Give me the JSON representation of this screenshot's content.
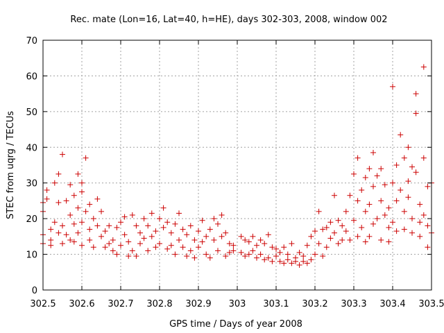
{
  "chart_data": {
    "type": "scatter",
    "title": "Rec. mate (Lon=16, Lat=40, h=HE), days 302-303, 2008, window 002",
    "xlabel": "GPS time / Days of year 2008",
    "ylabel": "STEC from uqrg / TECUs",
    "xlim": [
      302.5,
      303.5
    ],
    "ylim": [
      0,
      70
    ],
    "x_ticks": [
      "302.5",
      "302.6",
      "302.7",
      "302.8",
      "302.9",
      "303",
      "303.1",
      "303.2",
      "303.3",
      "303.4",
      "303.5"
    ],
    "y_ticks": [
      "0",
      "10",
      "20",
      "30",
      "40",
      "50",
      "60",
      "70"
    ],
    "grid": true,
    "marker": "+",
    "color": "#cc0000",
    "series": [
      {
        "points": [
          [
            302.5,
            24.5
          ],
          [
            302.5,
            22.0
          ],
          [
            302.5,
            15.5
          ],
          [
            302.5,
            13.0
          ],
          [
            302.51,
            28.0
          ],
          [
            302.51,
            25.5
          ],
          [
            302.52,
            17.0
          ],
          [
            302.52,
            14.0
          ],
          [
            302.52,
            12.5
          ],
          [
            302.53,
            30.0
          ],
          [
            302.53,
            19.0
          ],
          [
            302.54,
            32.5
          ],
          [
            302.54,
            24.5
          ],
          [
            302.54,
            16.0
          ],
          [
            302.55,
            38.0
          ],
          [
            302.55,
            18.0
          ],
          [
            302.55,
            13.0
          ],
          [
            302.56,
            25.0
          ],
          [
            302.56,
            15.5
          ],
          [
            302.57,
            29.5
          ],
          [
            302.57,
            21.0
          ],
          [
            302.57,
            14.0
          ],
          [
            302.58,
            26.5
          ],
          [
            302.58,
            18.5
          ],
          [
            302.58,
            13.5
          ],
          [
            302.59,
            32.5
          ],
          [
            302.59,
            23.0
          ],
          [
            302.59,
            16.0
          ],
          [
            302.6,
            30.0
          ],
          [
            302.6,
            27.5
          ],
          [
            302.6,
            19.0
          ],
          [
            302.6,
            12.5
          ],
          [
            302.61,
            37.0
          ],
          [
            302.61,
            22.0
          ],
          [
            302.62,
            24.0
          ],
          [
            302.62,
            17.0
          ],
          [
            302.62,
            14.0
          ],
          [
            302.63,
            20.0
          ],
          [
            302.63,
            12.0
          ],
          [
            302.64,
            25.5
          ],
          [
            302.64,
            18.0
          ],
          [
            302.65,
            22.0
          ],
          [
            302.65,
            15.0
          ],
          [
            302.66,
            16.5
          ],
          [
            302.66,
            12.0
          ],
          [
            302.67,
            18.0
          ],
          [
            302.67,
            13.0
          ],
          [
            302.68,
            14.0
          ],
          [
            302.68,
            11.0
          ],
          [
            302.69,
            17.5
          ],
          [
            302.69,
            10.0
          ],
          [
            302.7,
            19.0
          ],
          [
            302.7,
            12.5
          ],
          [
            302.71,
            20.5
          ],
          [
            302.71,
            15.5
          ],
          [
            302.72,
            13.5
          ],
          [
            302.72,
            9.5
          ],
          [
            302.73,
            21.0
          ],
          [
            302.73,
            11.0
          ],
          [
            302.74,
            18.0
          ],
          [
            302.74,
            9.5
          ],
          [
            302.75,
            16.0
          ],
          [
            302.75,
            13.0
          ],
          [
            302.76,
            20.0
          ],
          [
            302.76,
            14.5
          ],
          [
            302.77,
            18.0
          ],
          [
            302.77,
            11.0
          ],
          [
            302.78,
            21.5
          ],
          [
            302.78,
            15.0
          ],
          [
            302.79,
            16.5
          ],
          [
            302.79,
            12.0
          ],
          [
            302.8,
            20.0
          ],
          [
            302.8,
            13.0
          ],
          [
            302.81,
            23.0
          ],
          [
            302.81,
            17.5
          ],
          [
            302.82,
            19.0
          ],
          [
            302.82,
            11.5
          ],
          [
            302.83,
            16.0
          ],
          [
            302.83,
            12.5
          ],
          [
            302.84,
            18.5
          ],
          [
            302.84,
            10.0
          ],
          [
            302.85,
            21.5
          ],
          [
            302.85,
            14.0
          ],
          [
            302.86,
            17.0
          ],
          [
            302.86,
            12.0
          ],
          [
            302.87,
            15.5
          ],
          [
            302.87,
            9.5
          ],
          [
            302.88,
            18.0
          ],
          [
            302.88,
            11.0
          ],
          [
            302.89,
            14.0
          ],
          [
            302.89,
            9.0
          ],
          [
            302.9,
            16.5
          ],
          [
            302.9,
            12.0
          ],
          [
            302.91,
            19.5
          ],
          [
            302.91,
            13.5
          ],
          [
            302.92,
            15.0
          ],
          [
            302.92,
            10.0
          ],
          [
            302.93,
            17.0
          ],
          [
            302.93,
            9.0
          ],
          [
            302.94,
            20.0
          ],
          [
            302.94,
            14.0
          ],
          [
            302.95,
            18.5
          ],
          [
            302.95,
            11.0
          ],
          [
            302.96,
            21.0
          ],
          [
            302.96,
            15.0
          ],
          [
            302.97,
            16.0
          ],
          [
            302.97,
            9.5
          ],
          [
            302.98,
            13.0
          ],
          [
            302.98,
            10.5
          ],
          [
            302.99,
            12.5
          ],
          [
            302.99,
            11.0
          ],
          [
            303.01,
            15.0
          ],
          [
            303.01,
            10.5
          ],
          [
            303.02,
            14.0
          ],
          [
            303.02,
            9.5
          ],
          [
            303.03,
            13.5
          ],
          [
            303.03,
            10.0
          ],
          [
            303.04,
            15.0
          ],
          [
            303.04,
            11.0
          ],
          [
            303.05,
            12.5
          ],
          [
            303.05,
            9.0
          ],
          [
            303.06,
            14.0
          ],
          [
            303.06,
            10.0
          ],
          [
            303.07,
            13.0
          ],
          [
            303.07,
            8.5
          ],
          [
            303.08,
            15.5
          ],
          [
            303.08,
            9.0
          ],
          [
            303.09,
            12.0
          ],
          [
            303.09,
            8.0
          ],
          [
            303.1,
            11.5
          ],
          [
            303.1,
            9.5
          ],
          [
            303.11,
            10.5
          ],
          [
            303.11,
            8.0
          ],
          [
            303.12,
            12.0
          ],
          [
            303.12,
            7.5
          ],
          [
            303.13,
            10.0
          ],
          [
            303.13,
            8.5
          ],
          [
            303.14,
            13.0
          ],
          [
            303.14,
            7.5
          ],
          [
            303.15,
            9.0
          ],
          [
            303.15,
            8.0
          ],
          [
            303.16,
            10.5
          ],
          [
            303.16,
            7.0
          ],
          [
            303.17,
            9.5
          ],
          [
            303.17,
            8.0
          ],
          [
            303.18,
            12.5
          ],
          [
            303.18,
            7.5
          ],
          [
            303.19,
            15.0
          ],
          [
            303.19,
            8.5
          ],
          [
            303.2,
            16.5
          ],
          [
            303.2,
            10.0
          ],
          [
            303.21,
            22.0
          ],
          [
            303.21,
            13.0
          ],
          [
            303.22,
            17.0
          ],
          [
            303.22,
            9.5
          ],
          [
            303.23,
            17.5
          ],
          [
            303.23,
            12.0
          ],
          [
            303.24,
            19.0
          ],
          [
            303.24,
            14.5
          ],
          [
            303.25,
            26.5
          ],
          [
            303.25,
            16.0
          ],
          [
            303.26,
            19.5
          ],
          [
            303.26,
            13.0
          ],
          [
            303.27,
            18.0
          ],
          [
            303.27,
            14.0
          ],
          [
            303.28,
            22.0
          ],
          [
            303.28,
            16.5
          ],
          [
            303.29,
            26.5
          ],
          [
            303.29,
            14.0
          ],
          [
            303.3,
            32.5
          ],
          [
            303.3,
            19.5
          ],
          [
            303.31,
            37.0
          ],
          [
            303.31,
            25.0
          ],
          [
            303.31,
            15.0
          ],
          [
            303.32,
            28.0
          ],
          [
            303.32,
            17.5
          ],
          [
            303.33,
            31.5
          ],
          [
            303.33,
            22.0
          ],
          [
            303.33,
            13.5
          ],
          [
            303.34,
            34.0
          ],
          [
            303.34,
            24.0
          ],
          [
            303.34,
            15.0
          ],
          [
            303.35,
            38.5
          ],
          [
            303.35,
            29.0
          ],
          [
            303.35,
            18.5
          ],
          [
            303.36,
            32.0
          ],
          [
            303.36,
            20.0
          ],
          [
            303.37,
            34.0
          ],
          [
            303.37,
            25.0
          ],
          [
            303.37,
            14.0
          ],
          [
            303.38,
            29.5
          ],
          [
            303.38,
            21.0
          ],
          [
            303.39,
            23.0
          ],
          [
            303.39,
            17.5
          ],
          [
            303.39,
            13.5
          ],
          [
            303.4,
            57.0
          ],
          [
            303.4,
            30.0
          ],
          [
            303.4,
            19.0
          ],
          [
            303.41,
            35.0
          ],
          [
            303.41,
            25.0
          ],
          [
            303.41,
            16.5
          ],
          [
            303.42,
            43.5
          ],
          [
            303.42,
            28.0
          ],
          [
            303.43,
            37.0
          ],
          [
            303.43,
            22.0
          ],
          [
            303.43,
            17.0
          ],
          [
            303.44,
            40.0
          ],
          [
            303.44,
            30.5
          ],
          [
            303.44,
            26.0
          ],
          [
            303.45,
            34.5
          ],
          [
            303.45,
            20.0
          ],
          [
            303.45,
            16.0
          ],
          [
            303.46,
            55.0
          ],
          [
            303.46,
            49.5
          ],
          [
            303.46,
            33.0
          ],
          [
            303.47,
            24.0
          ],
          [
            303.47,
            19.0
          ],
          [
            303.47,
            15.0
          ],
          [
            303.48,
            62.5
          ],
          [
            303.48,
            37.0
          ],
          [
            303.48,
            21.0
          ],
          [
            303.49,
            29.0
          ],
          [
            303.49,
            18.0
          ],
          [
            303.49,
            12.0
          ],
          [
            303.5,
            30.0
          ],
          [
            303.5,
            16.0
          ]
        ]
      }
    ]
  }
}
